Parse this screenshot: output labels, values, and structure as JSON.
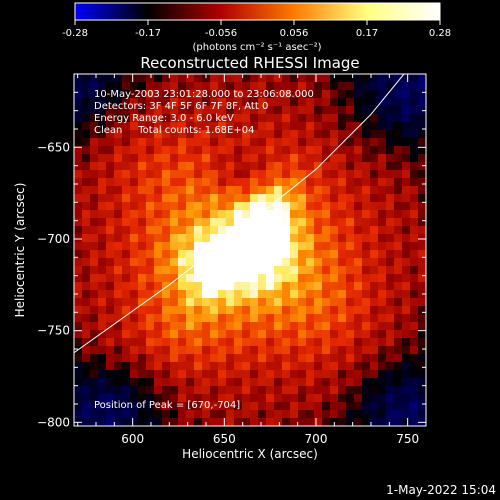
{
  "chart_data": {
    "type": "heatmap",
    "title": "Reconstructed RHESSI Image",
    "xlabel": "Heliocentric X (arcsec)",
    "ylabel": "Heliocentric Y (arcsec)",
    "xlim": [
      568,
      760
    ],
    "ylim": [
      -802,
      -610
    ],
    "x_ticks": [
      600,
      650,
      700,
      750
    ],
    "y_ticks": [
      -650,
      -700,
      -750,
      -800
    ],
    "colorbar": {
      "min": -0.28,
      "max": 0.28,
      "ticks": [
        "-0.28",
        "-0.17",
        "-0.056",
        "0.056",
        "0.17",
        "0.28"
      ],
      "unit_label": "(photons cm⁻² s⁻¹ asec⁻²)",
      "colors": [
        "#0000ff",
        "#000000",
        "#b00000",
        "#ff7a00",
        "#ffff80",
        "#ffffff"
      ]
    },
    "info_lines": [
      "10-May-2003 23:01:28.000 to 23:06:08.000",
      "Detectors: 3F 4F 5F 6F 7F 8F, Att 0",
      "Energy Range: 3.0 - 6.0 keV",
      "Clean     Total counts: 1.68E+04"
    ],
    "peak_label": "Position of Peak = [670,-704]",
    "peak": [
      670,
      -704
    ],
    "limb_line": [
      [
        568,
        -762
      ],
      [
        620,
        -725
      ],
      [
        660,
        -694
      ],
      [
        700,
        -662
      ],
      [
        730,
        -632
      ],
      [
        748,
        -610
      ]
    ],
    "emission_components": [
      {
        "cx": 660,
        "cy": -706,
        "sx": 42,
        "sy": 38,
        "amp": 0.16
      },
      {
        "cx": 650,
        "cy": -712,
        "sx": 18,
        "sy": 12,
        "amp": 0.11
      },
      {
        "cx": 673,
        "cy": -695,
        "sx": 12,
        "sy": 18,
        "amp": 0.1
      },
      {
        "cx": 645,
        "cy": -714,
        "sx": 8,
        "sy": 7,
        "amp": 0.06
      },
      {
        "cx": 672,
        "cy": -700,
        "sx": 7,
        "sy": 8,
        "amp": 0.05
      },
      {
        "cx": 625,
        "cy": -750,
        "sx": 20,
        "sy": 18,
        "amp": 0.04
      },
      {
        "cx": 705,
        "cy": -740,
        "sx": 20,
        "sy": 22,
        "amp": 0.04
      },
      {
        "cx": 615,
        "cy": -660,
        "sx": 22,
        "sy": 20,
        "amp": 0.03
      },
      {
        "cx": 660,
        "cy": -665,
        "sx": 12,
        "sy": 10,
        "amp": -0.07
      },
      {
        "cx": 590,
        "cy": -790,
        "sx": 18,
        "sy": 15,
        "amp": -0.11
      },
      {
        "cx": 745,
        "cy": -625,
        "sx": 20,
        "sy": 18,
        "amp": -0.1
      },
      {
        "cx": 745,
        "cy": -790,
        "sx": 18,
        "sy": 16,
        "amp": -0.09
      },
      {
        "cx": 575,
        "cy": -620,
        "sx": 14,
        "sy": 14,
        "amp": -0.07
      }
    ]
  },
  "timestamp": "1-May-2022 15:04"
}
